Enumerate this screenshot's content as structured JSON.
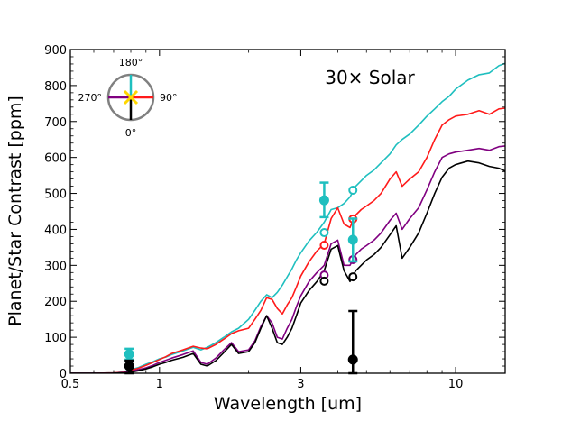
{
  "chart_data": {
    "type": "line",
    "title": "",
    "annotation": "30× Solar",
    "xlabel": "Wavelength [um]",
    "ylabel": "Planet/Star Contrast [ppm]",
    "xscale": "log",
    "xlim": [
      0.5,
      14.7
    ],
    "ylim": [
      0,
      900
    ],
    "xticks": [
      0.5,
      1,
      3,
      10
    ],
    "xtick_labels": [
      "0.5",
      "1",
      "3",
      "10"
    ],
    "yticks": [
      0,
      100,
      200,
      300,
      400,
      500,
      600,
      700,
      800,
      900
    ],
    "ytick_labels": [
      "0",
      "100",
      "200",
      "300",
      "400",
      "500",
      "600",
      "700",
      "800",
      "900"
    ],
    "grid": false,
    "legend": {
      "type": "inset-compass",
      "placement": "top-left",
      "labels": {
        "top": "180°",
        "right": "90°",
        "bottom": "0°",
        "left": "270°"
      },
      "colors": {
        "top": "#1fbfbf",
        "right": "#ff1a1a",
        "bottom": "#000000",
        "left": "#800080",
        "marker": "#ffd700",
        "ring": "#808080"
      }
    },
    "series": [
      {
        "name": "180°",
        "color": "#1fbfbf",
        "x": [
          0.5,
          0.6,
          0.7,
          0.76,
          0.8,
          0.85,
          0.9,
          0.95,
          1.0,
          1.05,
          1.1,
          1.2,
          1.3,
          1.38,
          1.45,
          1.55,
          1.65,
          1.75,
          1.85,
          2.0,
          2.1,
          2.2,
          2.3,
          2.4,
          2.5,
          2.6,
          2.7,
          2.8,
          2.9,
          3.0,
          3.2,
          3.4,
          3.6,
          3.8,
          4.0,
          4.2,
          4.4,
          4.5,
          4.6,
          4.8,
          5.0,
          5.3,
          5.6,
          6.0,
          6.3,
          6.6,
          7.0,
          7.5,
          8.0,
          8.5,
          9.0,
          9.5,
          10.0,
          11.0,
          12.0,
          13.0,
          14.0,
          14.7
        ],
        "y": [
          0,
          0,
          1,
          4,
          10,
          16,
          25,
          32,
          40,
          45,
          52,
          62,
          72,
          65,
          72,
          85,
          100,
          115,
          125,
          150,
          175,
          200,
          218,
          210,
          225,
          245,
          268,
          290,
          315,
          335,
          368,
          392,
          420,
          455,
          460,
          472,
          490,
          505,
          520,
          535,
          550,
          565,
          585,
          610,
          635,
          650,
          665,
          690,
          715,
          735,
          755,
          770,
          790,
          815,
          830,
          835,
          855,
          862
        ]
      },
      {
        "name": "90°",
        "color": "#ff1a1a",
        "x": [
          0.5,
          0.6,
          0.7,
          0.76,
          0.8,
          0.85,
          0.9,
          0.95,
          1.0,
          1.05,
          1.1,
          1.2,
          1.3,
          1.38,
          1.45,
          1.55,
          1.65,
          1.75,
          1.85,
          2.0,
          2.1,
          2.2,
          2.3,
          2.4,
          2.5,
          2.6,
          2.7,
          2.8,
          2.9,
          3.0,
          3.2,
          3.4,
          3.6,
          3.8,
          4.0,
          4.2,
          4.4,
          4.5,
          4.6,
          4.8,
          5.0,
          5.3,
          5.6,
          6.0,
          6.3,
          6.6,
          7.0,
          7.5,
          8.0,
          8.5,
          9.0,
          9.5,
          10.0,
          11.0,
          12.0,
          13.0,
          14.0,
          14.7
        ],
        "y": [
          0,
          0,
          1,
          3,
          8,
          14,
          22,
          30,
          38,
          46,
          55,
          65,
          75,
          70,
          68,
          80,
          95,
          110,
          118,
          125,
          150,
          175,
          210,
          205,
          180,
          165,
          190,
          210,
          240,
          270,
          310,
          340,
          360,
          430,
          460,
          415,
          405,
          425,
          440,
          455,
          465,
          480,
          500,
          540,
          560,
          520,
          540,
          560,
          600,
          650,
          690,
          705,
          715,
          720,
          730,
          720,
          735,
          737
        ]
      },
      {
        "name": "270°",
        "color": "#800080",
        "x": [
          0.5,
          0.6,
          0.7,
          0.76,
          0.8,
          0.85,
          0.9,
          0.95,
          1.0,
          1.05,
          1.1,
          1.2,
          1.3,
          1.38,
          1.45,
          1.55,
          1.65,
          1.75,
          1.85,
          2.0,
          2.1,
          2.2,
          2.3,
          2.4,
          2.5,
          2.6,
          2.7,
          2.8,
          2.9,
          3.0,
          3.2,
          3.4,
          3.6,
          3.8,
          4.0,
          4.2,
          4.4,
          4.5,
          4.6,
          4.8,
          5.0,
          5.3,
          5.6,
          6.0,
          6.3,
          6.6,
          7.0,
          7.5,
          8.0,
          8.5,
          9.0,
          9.5,
          10.0,
          11.0,
          12.0,
          13.0,
          14.0,
          14.7
        ],
        "y": [
          0,
          0,
          0,
          2,
          5,
          10,
          15,
          22,
          30,
          36,
          42,
          52,
          62,
          30,
          25,
          42,
          65,
          85,
          60,
          65,
          90,
          130,
          160,
          140,
          100,
          95,
          125,
          150,
          185,
          215,
          255,
          280,
          300,
          360,
          370,
          300,
          300,
          315,
          330,
          345,
          355,
          370,
          390,
          425,
          445,
          400,
          430,
          460,
          510,
          560,
          600,
          610,
          615,
          620,
          625,
          620,
          630,
          632
        ]
      },
      {
        "name": "0°",
        "color": "#000000",
        "x": [
          0.5,
          0.6,
          0.7,
          0.76,
          0.8,
          0.85,
          0.9,
          0.95,
          1.0,
          1.05,
          1.1,
          1.2,
          1.3,
          1.38,
          1.45,
          1.55,
          1.65,
          1.75,
          1.85,
          2.0,
          2.1,
          2.2,
          2.3,
          2.4,
          2.5,
          2.6,
          2.7,
          2.8,
          2.9,
          3.0,
          3.2,
          3.4,
          3.6,
          3.8,
          4.0,
          4.2,
          4.4,
          4.5,
          4.6,
          4.8,
          5.0,
          5.3,
          5.6,
          6.0,
          6.3,
          6.6,
          7.0,
          7.5,
          8.0,
          8.5,
          9.0,
          9.5,
          10.0,
          11.0,
          12.0,
          13.0,
          14.0,
          14.7
        ],
        "y": [
          0,
          0,
          0,
          1,
          3,
          7,
          12,
          18,
          25,
          30,
          36,
          44,
          55,
          25,
          20,
          35,
          58,
          80,
          55,
          60,
          85,
          125,
          160,
          125,
          85,
          80,
          100,
          125,
          160,
          195,
          230,
          255,
          285,
          345,
          355,
          285,
          255,
          270,
          285,
          300,
          315,
          330,
          350,
          385,
          410,
          320,
          350,
          390,
          445,
          500,
          545,
          570,
          580,
          590,
          585,
          575,
          570,
          562
        ]
      }
    ],
    "model_points": [
      {
        "series": "180°",
        "color": "#1fbfbf",
        "x": [
          3.6,
          4.5
        ],
        "y": [
          391,
          509
        ]
      },
      {
        "series": "90°",
        "color": "#ff1a1a",
        "x": [
          3.6,
          4.5
        ],
        "y": [
          356,
          429
        ]
      },
      {
        "series": "270°",
        "color": "#800080",
        "x": [
          3.6,
          4.5
        ],
        "y": [
          273,
          316
        ]
      },
      {
        "series": "0°",
        "color": "#000000",
        "x": [
          3.6,
          4.5
        ],
        "y": [
          256,
          268
        ]
      }
    ],
    "observations": [
      {
        "series": "180°",
        "color": "#1fbfbf",
        "x": [
          0.79,
          3.6,
          4.5
        ],
        "y": [
          53,
          481,
          371
        ],
        "yerr_low": [
          15,
          47,
          60
        ],
        "yerr_high": [
          15,
          49,
          59
        ]
      },
      {
        "series": "0°",
        "color": "#000000",
        "x": [
          0.79,
          4.5
        ],
        "y": [
          20,
          38
        ],
        "yerr_low": [
          20,
          38
        ],
        "yerr_high": [
          15,
          135
        ]
      }
    ]
  }
}
